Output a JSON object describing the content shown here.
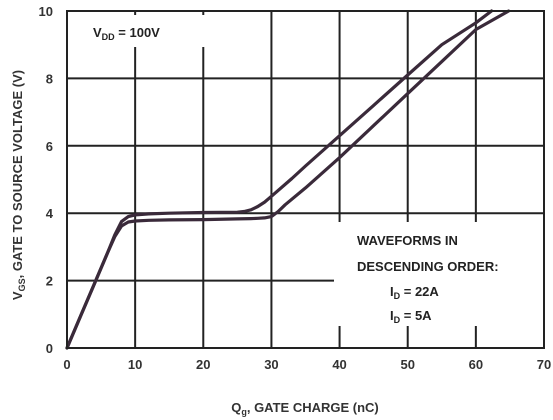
{
  "chart_data": {
    "type": "line",
    "title": "",
    "xlabel_main": "Q",
    "xlabel_sub": "g",
    "xlabel_rest": ", GATE CHARGE (nC)",
    "ylabel_main": "V",
    "ylabel_sub": "GS",
    "ylabel_rest": ", GATE TO SOURCE VOLTAGE (V)",
    "xlim": [
      0,
      70
    ],
    "ylim": [
      0,
      10
    ],
    "x_ticks": [
      0,
      10,
      20,
      30,
      40,
      50,
      60,
      70
    ],
    "y_ticks": [
      0,
      2,
      4,
      6,
      8,
      10
    ],
    "grid": true,
    "vdd_box": {
      "main": "V",
      "sub": "DD",
      "rest": " = 100V"
    },
    "legend": {
      "line1": "WAVEFORMS IN",
      "line2": "DESCENDING ORDER:",
      "entries": [
        {
          "main": "I",
          "sub": "D",
          "rest": " = 22A"
        },
        {
          "main": "I",
          "sub": "D",
          "rest": " = 5A"
        }
      ]
    },
    "series": [
      {
        "x": [
          0,
          2,
          4,
          6,
          7,
          8,
          9,
          10,
          12,
          15,
          20,
          25,
          27,
          28,
          29,
          30,
          31,
          32,
          35,
          40,
          45,
          50,
          55,
          60,
          64.8
        ],
        "y": [
          0,
          0.95,
          1.9,
          2.85,
          3.3,
          3.62,
          3.74,
          3.77,
          3.79,
          3.8,
          3.81,
          3.83,
          3.84,
          3.85,
          3.86,
          3.9,
          4.05,
          4.25,
          4.75,
          5.65,
          6.6,
          7.55,
          8.5,
          9.45,
          10
        ]
      },
      {
        "x": [
          0,
          2,
          4,
          6,
          7,
          8,
          9,
          10,
          12,
          15,
          20,
          25,
          26,
          27,
          28,
          29,
          30,
          33,
          35,
          40,
          45,
          50,
          55,
          60,
          62.3
        ],
        "y": [
          0,
          0.95,
          1.9,
          2.85,
          3.35,
          3.75,
          3.9,
          3.95,
          3.98,
          4.0,
          4.02,
          4.03,
          4.05,
          4.1,
          4.2,
          4.33,
          4.5,
          5.03,
          5.4,
          6.3,
          7.2,
          8.1,
          9.0,
          9.65,
          10
        ]
      }
    ]
  }
}
